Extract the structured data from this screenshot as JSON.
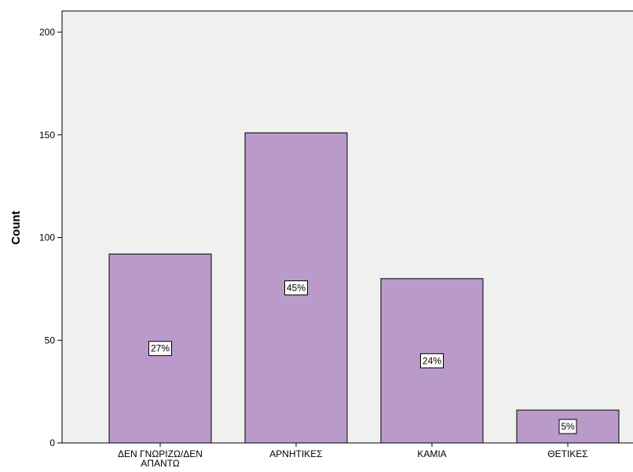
{
  "chart_data": {
    "type": "bar",
    "title": "",
    "xlabel": "",
    "ylabel": "Count",
    "ylim": [
      0,
      210
    ],
    "yticks": [
      0,
      50,
      100,
      150,
      200
    ],
    "grid": false,
    "categories": [
      "ΔΕΝ ΓΝΩΡΙΖΩ/ΔΕΝ ΑΠΑΝΤΩ",
      "ΑΡΝΗΤΙΚΕΣ",
      "ΚΑΜΙΑ",
      "ΘΕΤΙΚΕΣ"
    ],
    "category_lines": [
      [
        "ΔΕΝ ΓΝΩΡΙΖΩ/ΔΕΝ",
        "ΑΠΑΝΤΩ"
      ],
      [
        "ΑΡΝΗΤΙΚΕΣ"
      ],
      [
        "ΚΑΜΙΑ"
      ],
      [
        "ΘΕΤΙΚΕΣ"
      ]
    ],
    "values": [
      92,
      151,
      80,
      16
    ],
    "data_labels": [
      "27%",
      "45%",
      "24%",
      "5%"
    ],
    "colors": {
      "bar_fill": "#b99ac9",
      "bar_stroke": "#000000",
      "plot_background": "#f0f0f0",
      "axis": "#000000"
    }
  }
}
